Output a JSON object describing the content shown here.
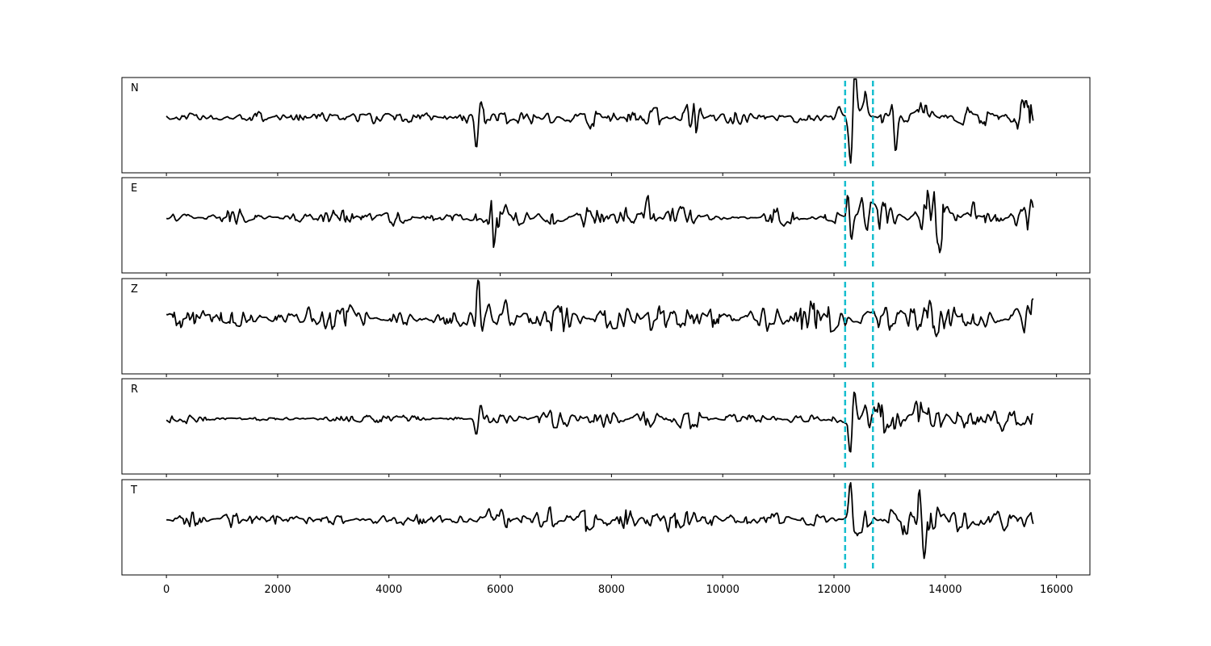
{
  "chart_data": {
    "type": "line",
    "xlim": [
      -800,
      16600
    ],
    "x_ticks": [
      0,
      2000,
      4000,
      6000,
      8000,
      10000,
      12000,
      14000,
      16000
    ],
    "x_tick_labels": [
      "0",
      "2000",
      "4000",
      "6000",
      "8000",
      "10000",
      "12000",
      "14000",
      "16000"
    ],
    "n_samples": 15800,
    "vertical_markers": [
      12200,
      12700
    ],
    "marker_color": "#17becf",
    "trace_color": "#000000",
    "panels": [
      {
        "label": "N",
        "noise_level": 0.05,
        "events": [
          {
            "t": 5570,
            "amp": -0.38
          },
          {
            "t": 5650,
            "amp": 0.24
          },
          {
            "t": 12100,
            "amp": 0.1
          },
          {
            "t": 12300,
            "amp": -0.55
          },
          {
            "t": 12380,
            "amp": 0.62
          },
          {
            "t": 12560,
            "amp": 0.28
          },
          {
            "t": 13100,
            "amp": -0.55
          },
          {
            "t": 13060,
            "amp": 0.3
          },
          {
            "t": 13650,
            "amp": 0.32
          },
          {
            "t": 15550,
            "amp": 0.14
          }
        ],
        "bursts": [
          {
            "t0": 5550,
            "t1": 9600,
            "level": 0.1
          },
          {
            "t0": 12200,
            "t1": 15800,
            "level": 0.12
          }
        ]
      },
      {
        "label": "E",
        "noise_level": 0.05,
        "events": [
          {
            "t": 5900,
            "amp": -0.15
          },
          {
            "t": 6100,
            "amp": 0.2
          },
          {
            "t": 8650,
            "amp": 0.22
          },
          {
            "t": 9200,
            "amp": 0.18
          },
          {
            "t": 12260,
            "amp": 0.42
          },
          {
            "t": 12300,
            "amp": -0.36
          },
          {
            "t": 12500,
            "amp": 0.18
          },
          {
            "t": 13620,
            "amp": 0.55
          },
          {
            "t": 13600,
            "amp": -0.45
          },
          {
            "t": 13900,
            "amp": -0.22
          },
          {
            "t": 14500,
            "amp": 0.18
          }
        ],
        "bursts": [
          {
            "t0": 5700,
            "t1": 9800,
            "level": 0.12
          },
          {
            "t0": 12200,
            "t1": 15800,
            "level": 0.14
          }
        ]
      },
      {
        "label": "Z",
        "noise_level": 0.09,
        "events": [
          {
            "t": 5560,
            "amp": -0.3
          },
          {
            "t": 5600,
            "amp": 0.68
          },
          {
            "t": 5680,
            "amp": -0.18
          },
          {
            "t": 5800,
            "amp": 0.18
          },
          {
            "t": 6100,
            "amp": 0.2
          },
          {
            "t": 2550,
            "amp": 0.12
          },
          {
            "t": 15570,
            "amp": 0.3
          },
          {
            "t": 15700,
            "amp": -0.22
          },
          {
            "t": 12200,
            "amp": -0.15
          }
        ],
        "bursts": [
          {
            "t0": 5500,
            "t1": 15800,
            "level": 0.16
          }
        ]
      },
      {
        "label": "R",
        "noise_level": 0.05,
        "events": [
          {
            "t": 5570,
            "amp": -0.2
          },
          {
            "t": 5650,
            "amp": 0.18
          },
          {
            "t": 12300,
            "amp": -0.5
          },
          {
            "t": 12360,
            "amp": 0.38
          },
          {
            "t": 12560,
            "amp": 0.2
          },
          {
            "t": 13080,
            "amp": -0.36
          },
          {
            "t": 13060,
            "amp": 0.22
          },
          {
            "t": 13480,
            "amp": 0.2
          }
        ],
        "bursts": [
          {
            "t0": 5550,
            "t1": 9600,
            "level": 0.1
          },
          {
            "t0": 12200,
            "t1": 15800,
            "level": 0.12
          }
        ]
      },
      {
        "label": "T",
        "noise_level": 0.05,
        "events": [
          {
            "t": 5800,
            "amp": 0.12
          },
          {
            "t": 6000,
            "amp": 0.14
          },
          {
            "t": 6100,
            "amp": -0.12
          },
          {
            "t": 12300,
            "amp": 0.55
          },
          {
            "t": 12360,
            "amp": -0.3
          },
          {
            "t": 13550,
            "amp": 0.36
          },
          {
            "t": 13620,
            "amp": -0.4
          },
          {
            "t": 15750,
            "amp": 0.1
          }
        ],
        "bursts": [
          {
            "t0": 5700,
            "t1": 9800,
            "level": 0.1
          },
          {
            "t0": 12200,
            "t1": 15800,
            "level": 0.12
          }
        ]
      }
    ]
  }
}
